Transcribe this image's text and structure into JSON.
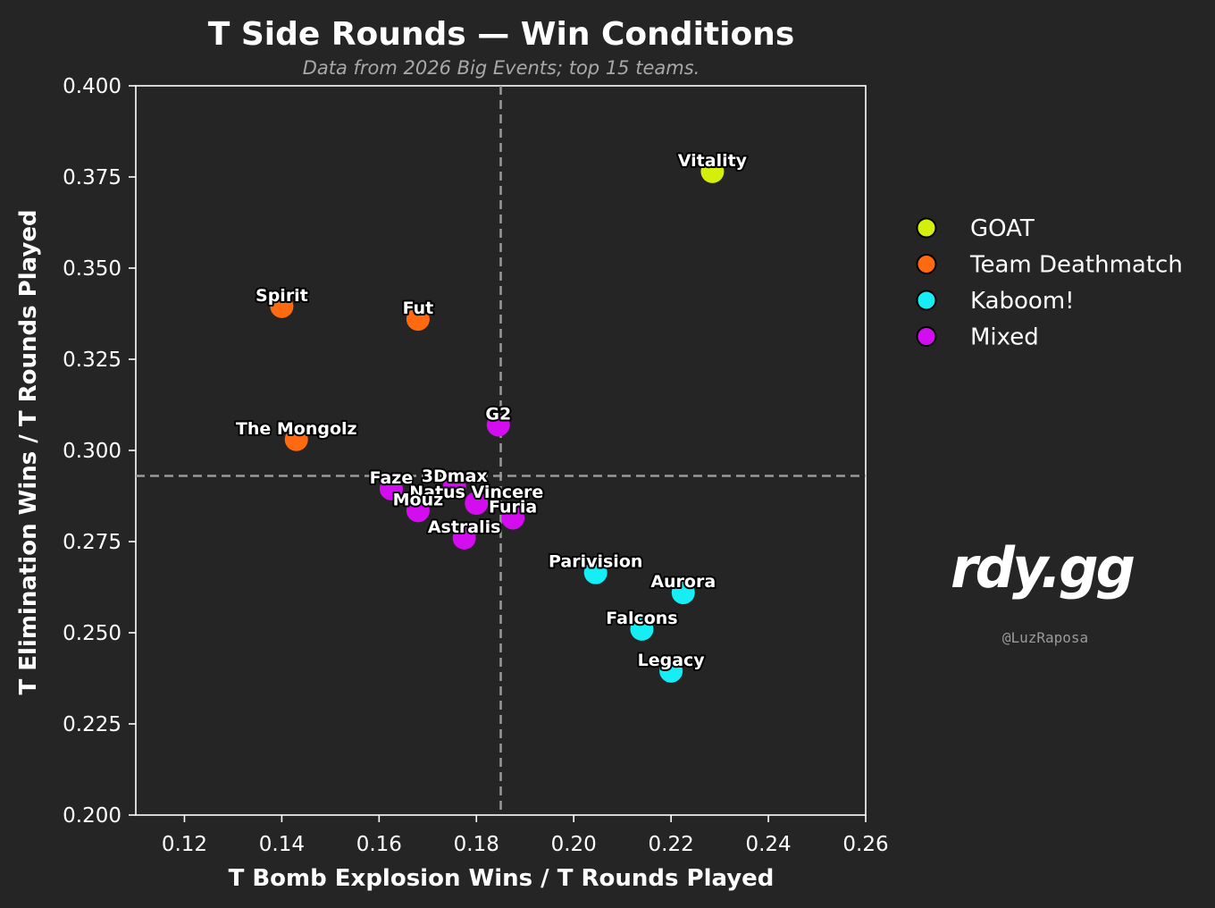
{
  "chart_data": {
    "type": "scatter",
    "title": "T Side Rounds — Win Conditions",
    "subtitle": "Data from 2026 Big Events; top 15 teams.",
    "xlabel": "T Bomb Explosion Wins / T Rounds Played",
    "ylabel": "T Elimination Wins / T Rounds Played",
    "xlim": [
      0.11,
      0.26
    ],
    "ylim": [
      0.2,
      0.4
    ],
    "xticks": [
      "0.12",
      "0.14",
      "0.16",
      "0.18",
      "0.20",
      "0.22",
      "0.24",
      "0.26"
    ],
    "yticks": [
      "0.200",
      "0.225",
      "0.250",
      "0.275",
      "0.300",
      "0.325",
      "0.350",
      "0.375",
      "0.400"
    ],
    "grid": false,
    "reference_lines": {
      "x": 0.185,
      "y": 0.293,
      "style": "dashed"
    },
    "legend_position": "right",
    "categories": [
      {
        "name": "GOAT",
        "color": "#d4f00a"
      },
      {
        "name": "Team Deathmatch",
        "color": "#ff6a10"
      },
      {
        "name": "Kaboom!",
        "color": "#14eef4"
      },
      {
        "name": "Mixed",
        "color": "#d40cf0"
      }
    ],
    "points": [
      {
        "label": "Vitality",
        "x": 0.2285,
        "y": 0.3765,
        "category": "GOAT"
      },
      {
        "label": "Spirit",
        "x": 0.14,
        "y": 0.3395,
        "category": "Team Deathmatch"
      },
      {
        "label": "Fut",
        "x": 0.168,
        "y": 0.336,
        "category": "Team Deathmatch"
      },
      {
        "label": "The Mongolz",
        "x": 0.143,
        "y": 0.303,
        "category": "Team Deathmatch"
      },
      {
        "label": "G2",
        "x": 0.1845,
        "y": 0.307,
        "category": "Mixed"
      },
      {
        "label": "Faze",
        "x": 0.1625,
        "y": 0.2895,
        "category": "Mixed"
      },
      {
        "label": "3Dmax",
        "x": 0.1755,
        "y": 0.29,
        "category": "Mixed"
      },
      {
        "label": "Natus Vincere",
        "x": 0.18,
        "y": 0.2855,
        "category": "Mixed"
      },
      {
        "label": "Mouz",
        "x": 0.168,
        "y": 0.2835,
        "category": "Mixed"
      },
      {
        "label": "Furia",
        "x": 0.1875,
        "y": 0.2815,
        "category": "Mixed"
      },
      {
        "label": "Astralis",
        "x": 0.1775,
        "y": 0.276,
        "category": "Mixed"
      },
      {
        "label": "Parivision",
        "x": 0.2045,
        "y": 0.2665,
        "category": "Kaboom!"
      },
      {
        "label": "Aurora",
        "x": 0.2225,
        "y": 0.261,
        "category": "Kaboom!"
      },
      {
        "label": "Falcons",
        "x": 0.214,
        "y": 0.251,
        "category": "Kaboom!"
      },
      {
        "label": "Legacy",
        "x": 0.22,
        "y": 0.2395,
        "category": "Kaboom!"
      }
    ]
  },
  "branding": {
    "logo": "rdy.gg",
    "handle": "@LuzRaposa"
  }
}
